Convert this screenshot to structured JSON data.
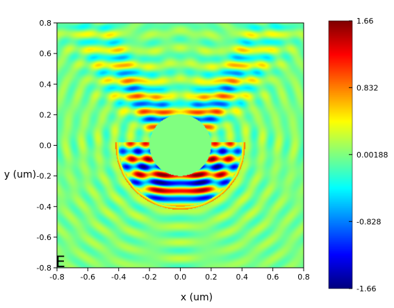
{
  "chart_data": {
    "type": "heatmap",
    "field_component": "E",
    "xlabel": "x (um)",
    "ylabel": "y (um)",
    "xlim": [
      -0.8,
      0.8
    ],
    "ylim": [
      -0.8,
      0.8
    ],
    "x_ticks": [
      "-0.8",
      "-0.6",
      "-0.4",
      "-0.2",
      "0.0",
      "0.2",
      "0.4",
      "0.6",
      "0.8"
    ],
    "y_ticks": [
      "0.8",
      "0.6",
      "0.4",
      "0.2",
      "0.0",
      "-0.2",
      "-0.4",
      "-0.6",
      "-0.8"
    ],
    "colorbar": {
      "min": -1.66,
      "max": 1.66,
      "tick_labels": [
        "1.66",
        "0.832",
        "0.00188",
        "-0.828",
        "-1.66"
      ],
      "tick_values": [
        1.66,
        0.832,
        0.00188,
        -0.828,
        -1.66
      ],
      "colormap": "jet"
    },
    "structure": {
      "inner_circle_radius_um": 0.2,
      "outer_arc_radius_um": 0.4,
      "description_free": true
    },
    "grid": false
  }
}
